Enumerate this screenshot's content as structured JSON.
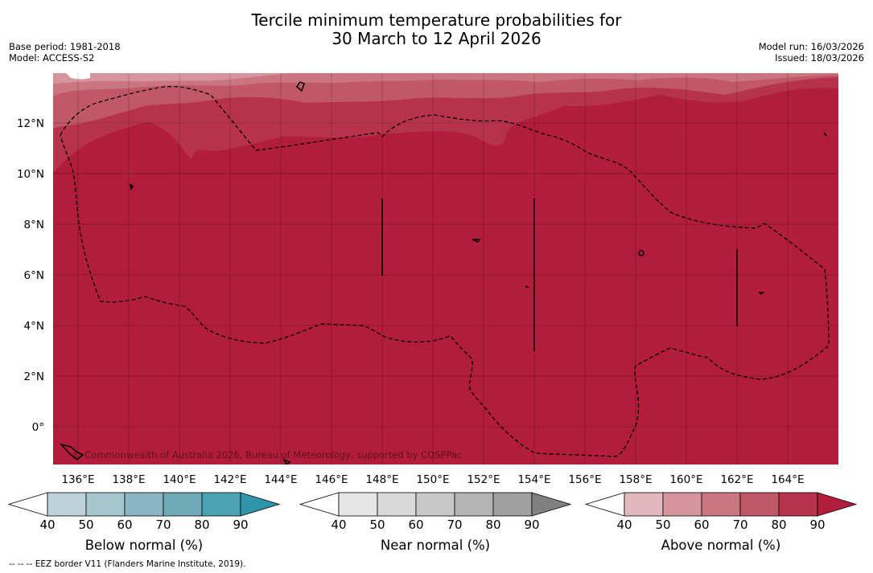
{
  "title": {
    "line1": "Tercile minimum temperature probabilities for",
    "line2": "30 March to 12 April 2026"
  },
  "meta_left": {
    "base_period": "Base period: 1981-2018",
    "model": "Model: ACCESS-S2"
  },
  "meta_right": {
    "model_run": "Model run: 16/03/2026",
    "issued": "Issued: 18/03/2026"
  },
  "map": {
    "copyright": "© Commonwealth of Australia 2026, Bureau of Meteorology, supported by COSPPac",
    "lon_labels": [
      "136°E",
      "138°E",
      "140°E",
      "142°E",
      "144°E",
      "146°E",
      "148°E",
      "150°E",
      "152°E",
      "154°E",
      "156°E",
      "158°E",
      "160°E",
      "162°E",
      "164°E"
    ],
    "lat_labels": [
      "12°N",
      "10°N",
      "8°N",
      "6°N",
      "4°N",
      "2°N",
      "0°"
    ]
  },
  "legends": [
    {
      "title": "Below normal (%)",
      "ticks": [
        "40",
        "50",
        "60",
        "70",
        "80",
        "90"
      ],
      "colors": [
        "#ffffff",
        "#bdd3da",
        "#a6c6cd",
        "#8bb5c0",
        "#6dabb9",
        "#4aa2b2",
        "#2f95aa"
      ]
    },
    {
      "title": "Near normal (%)",
      "ticks": [
        "40",
        "50",
        "60",
        "70",
        "80",
        "90"
      ],
      "colors": [
        "#ffffff",
        "#e6e6e6",
        "#d9d9d9",
        "#c8c8c8",
        "#b4b4b4",
        "#a0a0a0",
        "#808080"
      ]
    },
    {
      "title": "Above normal (%)",
      "ticks": [
        "40",
        "50",
        "60",
        "70",
        "80",
        "90"
      ],
      "colors": [
        "#ffffff",
        "#e2b7bd",
        "#d6959d",
        "#cb7580",
        "#c05868",
        "#b7334c",
        "#b11d3a"
      ]
    }
  ],
  "footer": "--  --  -- EEZ border V11 (Flanders Marine Institute, 2019)."
}
